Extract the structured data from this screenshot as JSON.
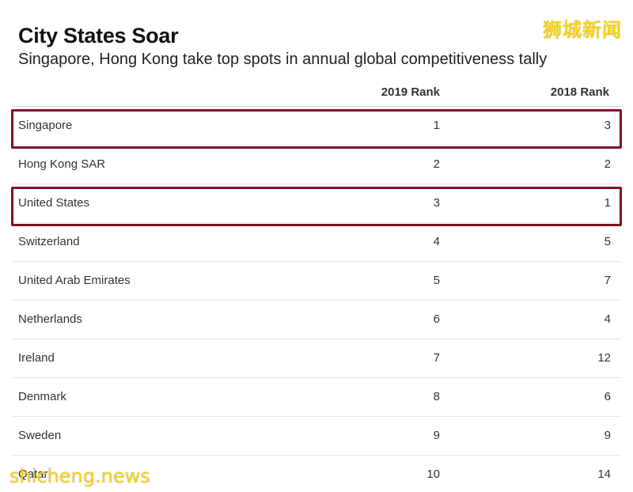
{
  "chart_data": {
    "type": "table",
    "title": "City States Soar",
    "subtitle": "Singapore, Hong Kong take top spots in annual global competitiveness tally",
    "columns": [
      "2019 Rank",
      "2018 Rank"
    ],
    "rows": [
      {
        "country": "Singapore",
        "rank_2019": "1",
        "rank_2018": "3",
        "highlighted": true
      },
      {
        "country": "Hong Kong SAR",
        "rank_2019": "2",
        "rank_2018": "2",
        "highlighted": false
      },
      {
        "country": "United States",
        "rank_2019": "3",
        "rank_2018": "1",
        "highlighted": true
      },
      {
        "country": "Switzerland",
        "rank_2019": "4",
        "rank_2018": "5",
        "highlighted": false
      },
      {
        "country": "United Arab Emirates",
        "rank_2019": "5",
        "rank_2018": "7",
        "highlighted": false
      },
      {
        "country": "Netherlands",
        "rank_2019": "6",
        "rank_2018": "4",
        "highlighted": false
      },
      {
        "country": "Ireland",
        "rank_2019": "7",
        "rank_2018": "12",
        "highlighted": false
      },
      {
        "country": "Denmark",
        "rank_2019": "8",
        "rank_2018": "6",
        "highlighted": false
      },
      {
        "country": "Sweden",
        "rank_2019": "9",
        "rank_2018": "9",
        "highlighted": false
      },
      {
        "country": "Qatar",
        "rank_2019": "10",
        "rank_2018": "14",
        "highlighted": false
      }
    ]
  },
  "watermarks": {
    "top_right": "狮城新闻",
    "bottom_left": "shicheng.news"
  },
  "colors": {
    "highlight_border": "#7a1520",
    "watermark": "#f2d21a"
  }
}
